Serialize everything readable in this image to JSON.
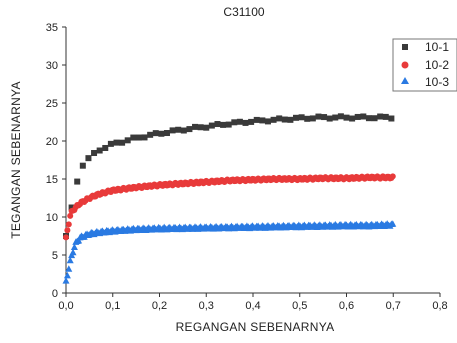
{
  "chart_data": {
    "type": "scatter",
    "title": "C31100",
    "xlabel": "REGANGAN SEBENARNYA",
    "ylabel": "TEGANGAN SEBENARNYA",
    "xlim": [
      0,
      0.8
    ],
    "ylim": [
      0,
      35
    ],
    "x_ticks": [
      "0,0",
      "0,1",
      "0,2",
      "0,3",
      "0,4",
      "0,5",
      "0,6",
      "0,7",
      "0,8"
    ],
    "y_ticks": [
      "0",
      "5",
      "10",
      "15",
      "20",
      "25",
      "30",
      "35"
    ],
    "grid": false,
    "legend_position": "top-right",
    "series": [
      {
        "name": "10-1",
        "marker": "square",
        "color": "#3a3a3a",
        "x": [
          0.0,
          0.02,
          0.03,
          0.05,
          0.07,
          0.1,
          0.15,
          0.2,
          0.25,
          0.3,
          0.35,
          0.4,
          0.45,
          0.5,
          0.55,
          0.6,
          0.65,
          0.7
        ],
        "y": [
          7.5,
          13.5,
          16.5,
          17.8,
          18.8,
          19.6,
          20.4,
          21.0,
          21.5,
          21.9,
          22.3,
          22.6,
          22.8,
          23.0,
          23.1,
          23.1,
          23.1,
          23.1
        ]
      },
      {
        "name": "10-2",
        "marker": "circle",
        "color": "#e83a3a",
        "x": [
          0.0,
          0.01,
          0.02,
          0.03,
          0.05,
          0.07,
          0.1,
          0.15,
          0.2,
          0.25,
          0.3,
          0.35,
          0.4,
          0.45,
          0.5,
          0.55,
          0.6,
          0.65,
          0.7
        ],
        "y": [
          7.2,
          10.5,
          11.2,
          11.8,
          12.5,
          13.0,
          13.5,
          13.9,
          14.2,
          14.4,
          14.6,
          14.8,
          14.9,
          15.0,
          15.0,
          15.1,
          15.1,
          15.2,
          15.2
        ],
        "anchor_values": [
          [
            0.0,
            7.2
          ],
          [
            0.05,
            12.5
          ],
          [
            0.2,
            14.2
          ],
          [
            0.4,
            14.9
          ],
          [
            0.7,
            15.2
          ]
        ]
      },
      {
        "name": "10-3",
        "marker": "triangle",
        "color": "#2a7ae2",
        "x": [
          0.0,
          0.005,
          0.01,
          0.02,
          0.03,
          0.05,
          0.07,
          0.1,
          0.15,
          0.2,
          0.25,
          0.3,
          0.35,
          0.4,
          0.45,
          0.5,
          0.55,
          0.6,
          0.65,
          0.7
        ],
        "y": [
          1.5,
          3.0,
          4.5,
          6.5,
          7.3,
          7.8,
          8.0,
          8.2,
          8.4,
          8.5,
          8.55,
          8.6,
          8.65,
          8.7,
          8.75,
          8.8,
          8.85,
          8.9,
          8.9,
          9.0
        ]
      }
    ]
  }
}
